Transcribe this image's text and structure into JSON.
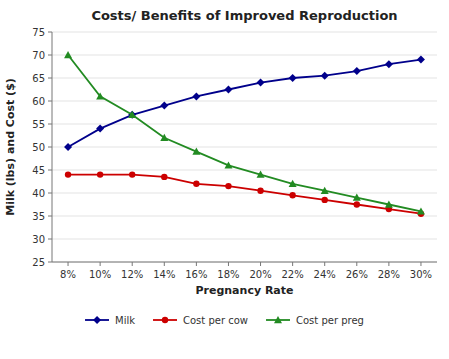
{
  "chart_data": {
    "type": "line",
    "title": "Costs/ Benefits of Improved Reproduction",
    "x_label": "Pregnancy Rate",
    "y_label": "Milk (lbs) and Cost ($)",
    "x": [
      8,
      10,
      12,
      14,
      16,
      18,
      20,
      22,
      24,
      26,
      28,
      30
    ],
    "xlim": [
      7,
      31
    ],
    "xticks": [
      {
        "value": 8,
        "label": "8%"
      },
      {
        "value": 10,
        "label": "10%"
      },
      {
        "value": 12,
        "label": "12%"
      },
      {
        "value": 14,
        "label": "14%"
      },
      {
        "value": 16,
        "label": "16%"
      },
      {
        "value": 18,
        "label": "18%"
      },
      {
        "value": 20,
        "label": "20%"
      },
      {
        "value": 22,
        "label": "22%"
      },
      {
        "value": 24,
        "label": "24%"
      },
      {
        "value": 26,
        "label": "26%"
      },
      {
        "value": 28,
        "label": "28%"
      },
      {
        "value": 30,
        "label": "30%"
      }
    ],
    "ylim": [
      25,
      75
    ],
    "yticks": [
      25,
      30,
      35,
      40,
      45,
      50,
      55,
      60,
      65,
      70,
      75
    ],
    "grid": true,
    "legend": "bottom",
    "series": [
      {
        "name": "Milk",
        "color": "#00008B",
        "marker": "diamond",
        "values": [
          50,
          54,
          57,
          59,
          61,
          62.5,
          64,
          65,
          65.5,
          66.5,
          68,
          69
        ]
      },
      {
        "name": "Cost per cow",
        "color": "#CC0000",
        "marker": "circle",
        "values": [
          44,
          44,
          44,
          43.5,
          42,
          41.5,
          40.5,
          39.5,
          38.5,
          37.5,
          36.5,
          35.5
        ]
      },
      {
        "name": "Cost per preg",
        "color": "#228B22",
        "marker": "triangle",
        "values": [
          70,
          61,
          57,
          52,
          49,
          46,
          44,
          42,
          40.5,
          39,
          37.5,
          36
        ]
      }
    ]
  }
}
